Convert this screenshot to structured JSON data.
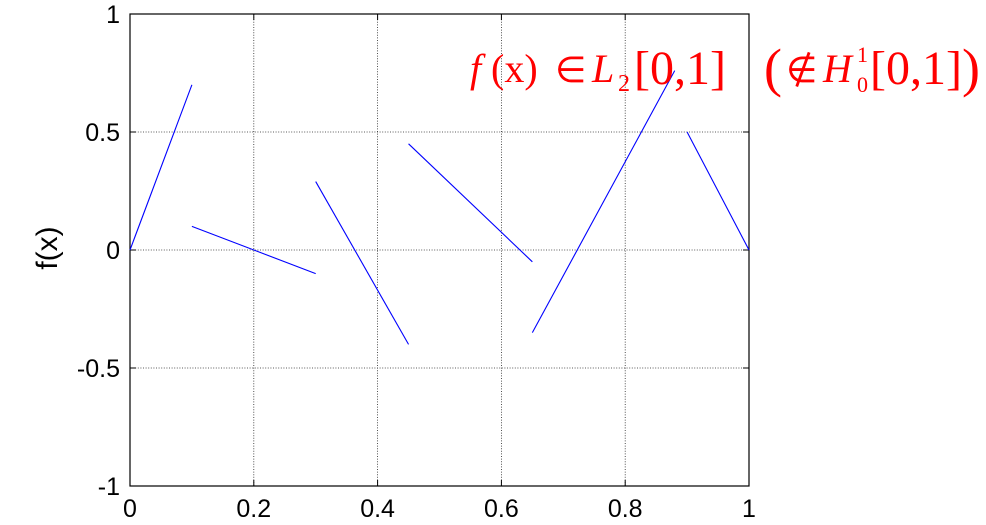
{
  "chart_data": {
    "type": "line",
    "title": "",
    "xlabel": "",
    "ylabel": "f(x)",
    "xlim": [
      0,
      1
    ],
    "ylim": [
      -1,
      1
    ],
    "xticks": [
      0,
      0.2,
      0.4,
      0.6,
      0.8,
      1
    ],
    "yticks": [
      -1,
      -0.5,
      0,
      0.5,
      1
    ],
    "xtick_labels": [
      "0",
      "0.2",
      "0.4",
      "0.6",
      "0.8",
      "1"
    ],
    "ytick_labels": [
      "-1",
      "-0.5",
      "0",
      "0.5",
      "1"
    ],
    "grid": true,
    "colors": {
      "line": "#0000ff",
      "annotation": "#ff0000",
      "grid": "#262626"
    },
    "segments": [
      {
        "x": [
          0.0,
          0.1
        ],
        "y": [
          0.0,
          0.7
        ]
      },
      {
        "x": [
          0.1,
          0.3
        ],
        "y": [
          0.1,
          -0.1
        ]
      },
      {
        "x": [
          0.3,
          0.45
        ],
        "y": [
          0.29,
          -0.4
        ]
      },
      {
        "x": [
          0.45,
          0.65
        ],
        "y": [
          0.45,
          -0.05
        ]
      },
      {
        "x": [
          0.65,
          0.88
        ],
        "y": [
          -0.35,
          0.76
        ]
      },
      {
        "x": [
          0.9,
          1.0
        ],
        "y": [
          0.5,
          0.0
        ]
      }
    ],
    "annotation": {
      "text": "f(x) ∈ L₂[0,1]  (∉ H₀¹[0,1])",
      "fx": "f",
      "paren_x": "(x)",
      "in": "∈",
      "L": "L",
      "L_sub": "2",
      "interval1": "[0,1]",
      "open_paren": "(",
      "notin": "∉",
      "H": "H",
      "H_sup": "1",
      "H_sub": "0",
      "interval2": "[0,1]",
      "close_paren": ")"
    }
  }
}
